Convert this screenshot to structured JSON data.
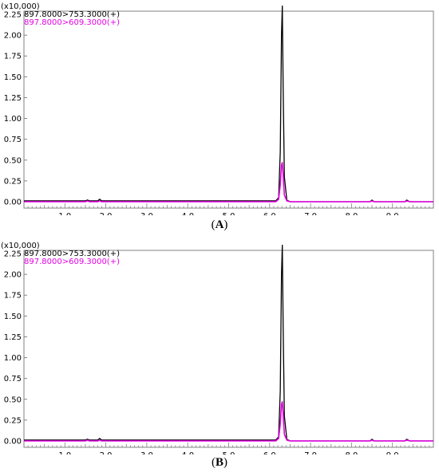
{
  "chart_data": [
    {
      "type": "line",
      "panel_label": "A",
      "multiplier": "(x10,000)",
      "legend_placement": "top-left",
      "grid": false,
      "xlim": [
        0,
        10
      ],
      "ylim": [
        0,
        2.3
      ],
      "x_ticks": [
        "1.0",
        "2.0",
        "3.0",
        "4.0",
        "5.0",
        "6.0",
        "7.0",
        "8.0",
        "9.0"
      ],
      "y_ticks": [
        "0.00",
        "0.25",
        "0.50",
        "0.75",
        "1.00",
        "1.25",
        "1.50",
        "1.75",
        "2.00",
        "2.25"
      ],
      "colors": {
        "series1": "#000000",
        "series2": "#e600e6",
        "axis": "#808080"
      },
      "series": [
        {
          "name": "897.8000>753.3000(+)",
          "x": [
            0.0,
            1.5,
            1.55,
            1.6,
            1.8,
            1.85,
            1.9,
            6.15,
            6.22,
            6.26,
            6.29,
            6.31,
            6.33,
            6.36,
            6.42,
            6.5,
            8.45,
            8.5,
            8.55,
            9.3,
            9.35,
            9.42,
            10.0
          ],
          "y": [
            0.01,
            0.01,
            0.02,
            0.01,
            0.01,
            0.03,
            0.01,
            0.01,
            0.05,
            0.6,
            2.0,
            2.35,
            1.4,
            0.3,
            0.02,
            0.0,
            0.0,
            0.02,
            0.0,
            0.0,
            0.02,
            0.0,
            0.0
          ]
        },
        {
          "name": "897.8000>609.3000(+)",
          "x": [
            0.0,
            1.5,
            1.55,
            1.6,
            1.8,
            1.85,
            1.9,
            6.15,
            6.22,
            6.26,
            6.29,
            6.31,
            6.33,
            6.36,
            6.42,
            6.5,
            8.45,
            8.5,
            8.55,
            9.3,
            9.35,
            9.42,
            10.0
          ],
          "y": [
            0.0,
            0.0,
            0.01,
            0.0,
            0.0,
            0.01,
            0.0,
            0.0,
            0.03,
            0.2,
            0.44,
            0.47,
            0.32,
            0.08,
            0.01,
            0.0,
            0.0,
            0.01,
            0.0,
            0.0,
            0.01,
            0.0,
            0.0
          ]
        }
      ]
    },
    {
      "type": "line",
      "panel_label": "B",
      "multiplier": "(x10,000)",
      "legend_placement": "top-left",
      "grid": false,
      "xlim": [
        0,
        10
      ],
      "ylim": [
        0,
        2.3
      ],
      "x_ticks": [
        "1.0",
        "2.0",
        "3.0",
        "4.0",
        "5.0",
        "6.0",
        "7.0",
        "8.0",
        "9.0"
      ],
      "y_ticks": [
        "0.00",
        "0.25",
        "0.50",
        "0.75",
        "1.00",
        "1.25",
        "1.50",
        "1.75",
        "2.00",
        "2.25"
      ],
      "colors": {
        "series1": "#000000",
        "series2": "#e600e6",
        "axis": "#808080"
      },
      "series": [
        {
          "name": "897.8000>753.3000(+)",
          "x": [
            0.0,
            1.5,
            1.55,
            1.6,
            1.8,
            1.85,
            1.9,
            6.15,
            6.22,
            6.26,
            6.29,
            6.31,
            6.33,
            6.36,
            6.42,
            6.5,
            8.45,
            8.5,
            8.55,
            9.3,
            9.35,
            9.42,
            10.0
          ],
          "y": [
            0.01,
            0.01,
            0.02,
            0.01,
            0.01,
            0.03,
            0.01,
            0.01,
            0.05,
            0.6,
            2.0,
            2.35,
            1.4,
            0.3,
            0.02,
            0.0,
            0.0,
            0.02,
            0.0,
            0.0,
            0.02,
            0.0,
            0.0
          ]
        },
        {
          "name": "897.8000>609.3000(+)",
          "x": [
            0.0,
            1.5,
            1.55,
            1.6,
            1.8,
            1.85,
            1.9,
            6.15,
            6.22,
            6.26,
            6.29,
            6.31,
            6.33,
            6.36,
            6.42,
            6.5,
            8.45,
            8.5,
            8.55,
            9.3,
            9.35,
            9.42,
            10.0
          ],
          "y": [
            0.0,
            0.0,
            0.01,
            0.0,
            0.0,
            0.01,
            0.0,
            0.0,
            0.03,
            0.2,
            0.44,
            0.47,
            0.32,
            0.08,
            0.01,
            0.0,
            0.0,
            0.01,
            0.0,
            0.0,
            0.01,
            0.0,
            0.0
          ]
        }
      ]
    }
  ]
}
